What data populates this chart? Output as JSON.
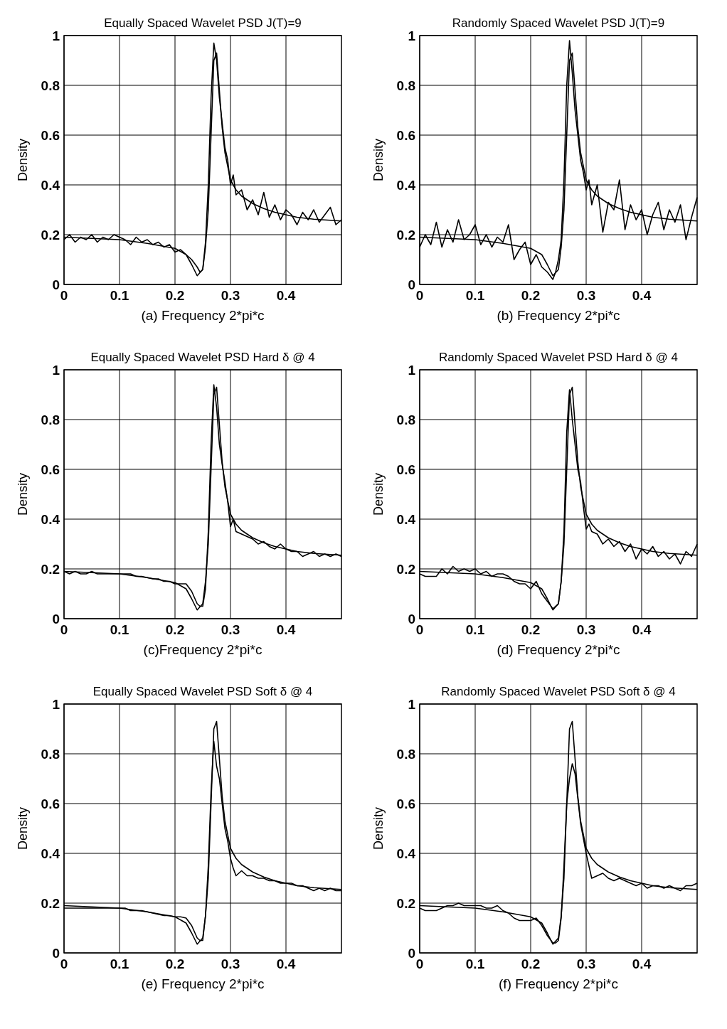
{
  "chart_data": [
    {
      "type": "line",
      "title": "Equally Spaced Wavelet PSD J(T)=9",
      "xlabel": "(a) Frequency 2*pi*c",
      "ylabel": "Density",
      "xlim": [
        0,
        0.5
      ],
      "ylim": [
        0,
        1
      ],
      "xticks": [
        0,
        0.1,
        0.2,
        0.3,
        0.4
      ],
      "yticks": [
        0,
        0.2,
        0.4,
        0.6,
        0.8,
        1
      ],
      "grid": true,
      "series": [
        {
          "color": "#000000",
          "x": [
            0,
            0.05,
            0.1,
            0.15,
            0.2,
            0.22,
            0.23,
            0.24,
            0.25,
            0.255,
            0.26,
            0.265,
            0.27,
            0.275,
            0.28,
            0.285,
            0.29,
            0.3,
            0.31,
            0.32,
            0.34,
            0.36,
            0.38,
            0.4,
            0.42,
            0.45,
            0.5
          ],
          "values": [
            0.19,
            0.185,
            0.18,
            0.165,
            0.145,
            0.12,
            0.08,
            0.035,
            0.06,
            0.15,
            0.3,
            0.6,
            0.9,
            0.93,
            0.78,
            0.63,
            0.53,
            0.42,
            0.38,
            0.355,
            0.325,
            0.305,
            0.29,
            0.28,
            0.27,
            0.262,
            0.255
          ]
        },
        {
          "color": "#000000",
          "x": [
            0,
            0.01,
            0.02,
            0.03,
            0.04,
            0.05,
            0.06,
            0.07,
            0.08,
            0.09,
            0.1,
            0.11,
            0.12,
            0.13,
            0.14,
            0.15,
            0.16,
            0.17,
            0.18,
            0.19,
            0.2,
            0.21,
            0.22,
            0.23,
            0.24,
            0.245,
            0.25,
            0.255,
            0.26,
            0.265,
            0.27,
            0.275,
            0.28,
            0.285,
            0.29,
            0.295,
            0.3,
            0.305,
            0.31,
            0.32,
            0.33,
            0.34,
            0.35,
            0.36,
            0.37,
            0.38,
            0.39,
            0.4,
            0.41,
            0.42,
            0.43,
            0.44,
            0.45,
            0.46,
            0.47,
            0.48,
            0.49,
            0.5
          ],
          "values": [
            0.18,
            0.2,
            0.17,
            0.19,
            0.18,
            0.2,
            0.17,
            0.19,
            0.18,
            0.2,
            0.19,
            0.18,
            0.16,
            0.19,
            0.17,
            0.18,
            0.16,
            0.17,
            0.15,
            0.16,
            0.13,
            0.14,
            0.12,
            0.1,
            0.07,
            0.05,
            0.06,
            0.17,
            0.4,
            0.75,
            0.97,
            0.9,
            0.75,
            0.65,
            0.55,
            0.5,
            0.4,
            0.44,
            0.36,
            0.38,
            0.3,
            0.34,
            0.28,
            0.37,
            0.27,
            0.32,
            0.26,
            0.3,
            0.28,
            0.24,
            0.29,
            0.26,
            0.3,
            0.25,
            0.28,
            0.31,
            0.24,
            0.26
          ]
        }
      ]
    },
    {
      "type": "line",
      "title": "Randomly Spaced Wavelet PSD J(T)=9",
      "xlabel": "(b) Frequency 2*pi*c",
      "ylabel": "Density",
      "xlim": [
        0,
        0.5
      ],
      "ylim": [
        0,
        1
      ],
      "xticks": [
        0,
        0.1,
        0.2,
        0.3,
        0.4
      ],
      "yticks": [
        0,
        0.2,
        0.4,
        0.6,
        0.8,
        1
      ],
      "grid": true,
      "series": [
        {
          "color": "#000000",
          "x": [
            0,
            0.05,
            0.1,
            0.15,
            0.2,
            0.22,
            0.23,
            0.24,
            0.25,
            0.255,
            0.26,
            0.265,
            0.27,
            0.275,
            0.28,
            0.285,
            0.29,
            0.3,
            0.31,
            0.32,
            0.34,
            0.36,
            0.38,
            0.4,
            0.42,
            0.45,
            0.5
          ],
          "values": [
            0.19,
            0.185,
            0.18,
            0.165,
            0.145,
            0.12,
            0.08,
            0.035,
            0.06,
            0.15,
            0.3,
            0.6,
            0.9,
            0.93,
            0.78,
            0.63,
            0.53,
            0.42,
            0.38,
            0.355,
            0.325,
            0.305,
            0.29,
            0.28,
            0.27,
            0.262,
            0.255
          ]
        },
        {
          "color": "#000000",
          "x": [
            0,
            0.01,
            0.02,
            0.03,
            0.04,
            0.05,
            0.06,
            0.07,
            0.08,
            0.09,
            0.1,
            0.11,
            0.12,
            0.13,
            0.14,
            0.15,
            0.16,
            0.17,
            0.18,
            0.19,
            0.2,
            0.21,
            0.22,
            0.23,
            0.24,
            0.245,
            0.25,
            0.255,
            0.26,
            0.265,
            0.27,
            0.275,
            0.28,
            0.285,
            0.29,
            0.295,
            0.3,
            0.305,
            0.31,
            0.32,
            0.33,
            0.34,
            0.35,
            0.36,
            0.37,
            0.38,
            0.39,
            0.4,
            0.41,
            0.42,
            0.43,
            0.44,
            0.45,
            0.46,
            0.47,
            0.48,
            0.49,
            0.5
          ],
          "values": [
            0.15,
            0.2,
            0.16,
            0.25,
            0.15,
            0.22,
            0.17,
            0.26,
            0.18,
            0.2,
            0.24,
            0.16,
            0.2,
            0.15,
            0.19,
            0.17,
            0.24,
            0.1,
            0.14,
            0.17,
            0.08,
            0.12,
            0.07,
            0.05,
            0.02,
            0.05,
            0.1,
            0.18,
            0.42,
            0.8,
            0.98,
            0.85,
            0.7,
            0.6,
            0.5,
            0.45,
            0.38,
            0.42,
            0.32,
            0.4,
            0.21,
            0.33,
            0.3,
            0.42,
            0.22,
            0.32,
            0.26,
            0.3,
            0.2,
            0.28,
            0.33,
            0.22,
            0.3,
            0.25,
            0.32,
            0.18,
            0.27,
            0.35
          ]
        }
      ]
    },
    {
      "type": "line",
      "title": "Equally Spaced Wavelet PSD Hard δ @ 4",
      "xlabel": "(c)Frequency 2*pi*c",
      "ylabel": "Density",
      "xlim": [
        0,
        0.5
      ],
      "ylim": [
        0,
        1
      ],
      "xticks": [
        0,
        0.1,
        0.2,
        0.3,
        0.4
      ],
      "yticks": [
        0,
        0.2,
        0.4,
        0.6,
        0.8,
        1
      ],
      "grid": true,
      "series": [
        {
          "color": "#000000",
          "x": [
            0,
            0.05,
            0.1,
            0.15,
            0.2,
            0.22,
            0.23,
            0.24,
            0.25,
            0.255,
            0.26,
            0.265,
            0.27,
            0.275,
            0.28,
            0.285,
            0.29,
            0.3,
            0.31,
            0.32,
            0.34,
            0.36,
            0.38,
            0.4,
            0.42,
            0.45,
            0.5
          ],
          "values": [
            0.19,
            0.185,
            0.18,
            0.165,
            0.145,
            0.12,
            0.08,
            0.035,
            0.06,
            0.15,
            0.3,
            0.6,
            0.9,
            0.93,
            0.78,
            0.63,
            0.53,
            0.42,
            0.38,
            0.355,
            0.325,
            0.305,
            0.29,
            0.28,
            0.27,
            0.262,
            0.255
          ]
        },
        {
          "color": "#000000",
          "x": [
            0,
            0.01,
            0.02,
            0.03,
            0.04,
            0.05,
            0.06,
            0.07,
            0.08,
            0.09,
            0.1,
            0.11,
            0.12,
            0.13,
            0.14,
            0.15,
            0.16,
            0.17,
            0.18,
            0.19,
            0.2,
            0.21,
            0.22,
            0.23,
            0.24,
            0.245,
            0.25,
            0.255,
            0.26,
            0.265,
            0.27,
            0.275,
            0.28,
            0.285,
            0.29,
            0.295,
            0.3,
            0.305,
            0.31,
            0.32,
            0.33,
            0.34,
            0.35,
            0.36,
            0.37,
            0.38,
            0.39,
            0.4,
            0.41,
            0.42,
            0.43,
            0.44,
            0.45,
            0.46,
            0.47,
            0.48,
            0.49,
            0.5
          ],
          "values": [
            0.19,
            0.18,
            0.19,
            0.18,
            0.18,
            0.19,
            0.18,
            0.18,
            0.18,
            0.18,
            0.18,
            0.18,
            0.18,
            0.17,
            0.17,
            0.165,
            0.16,
            0.16,
            0.15,
            0.15,
            0.14,
            0.14,
            0.14,
            0.11,
            0.06,
            0.05,
            0.05,
            0.12,
            0.35,
            0.7,
            0.94,
            0.85,
            0.7,
            0.62,
            0.55,
            0.47,
            0.37,
            0.4,
            0.35,
            0.34,
            0.33,
            0.32,
            0.3,
            0.31,
            0.29,
            0.28,
            0.3,
            0.28,
            0.27,
            0.27,
            0.25,
            0.26,
            0.27,
            0.25,
            0.26,
            0.25,
            0.26,
            0.25
          ]
        }
      ]
    },
    {
      "type": "line",
      "title": "Randomly Spaced Wavelet PSD Hard δ @ 4",
      "xlabel": "(d) Frequency 2*pi*c",
      "ylabel": "Density",
      "xlim": [
        0,
        0.5
      ],
      "ylim": [
        0,
        1
      ],
      "xticks": [
        0,
        0.1,
        0.2,
        0.3,
        0.4
      ],
      "yticks": [
        0,
        0.2,
        0.4,
        0.6,
        0.8,
        1
      ],
      "grid": true,
      "series": [
        {
          "color": "#000000",
          "x": [
            0,
            0.05,
            0.1,
            0.15,
            0.2,
            0.22,
            0.23,
            0.24,
            0.25,
            0.255,
            0.26,
            0.265,
            0.27,
            0.275,
            0.28,
            0.285,
            0.29,
            0.3,
            0.31,
            0.32,
            0.34,
            0.36,
            0.38,
            0.4,
            0.42,
            0.45,
            0.5
          ],
          "values": [
            0.19,
            0.185,
            0.18,
            0.165,
            0.145,
            0.12,
            0.08,
            0.035,
            0.06,
            0.15,
            0.3,
            0.6,
            0.9,
            0.93,
            0.78,
            0.63,
            0.53,
            0.42,
            0.38,
            0.355,
            0.325,
            0.305,
            0.29,
            0.28,
            0.27,
            0.262,
            0.255
          ]
        },
        {
          "color": "#000000",
          "x": [
            0,
            0.01,
            0.02,
            0.03,
            0.04,
            0.05,
            0.06,
            0.07,
            0.08,
            0.09,
            0.1,
            0.11,
            0.12,
            0.13,
            0.14,
            0.15,
            0.16,
            0.17,
            0.18,
            0.19,
            0.2,
            0.21,
            0.22,
            0.23,
            0.24,
            0.245,
            0.25,
            0.255,
            0.26,
            0.265,
            0.27,
            0.275,
            0.28,
            0.285,
            0.29,
            0.295,
            0.3,
            0.305,
            0.31,
            0.32,
            0.33,
            0.34,
            0.35,
            0.36,
            0.37,
            0.38,
            0.39,
            0.4,
            0.41,
            0.42,
            0.43,
            0.44,
            0.45,
            0.46,
            0.47,
            0.48,
            0.49,
            0.5
          ],
          "values": [
            0.18,
            0.17,
            0.17,
            0.17,
            0.2,
            0.18,
            0.21,
            0.19,
            0.2,
            0.19,
            0.2,
            0.18,
            0.19,
            0.17,
            0.18,
            0.18,
            0.17,
            0.15,
            0.14,
            0.14,
            0.12,
            0.15,
            0.1,
            0.07,
            0.04,
            0.05,
            0.06,
            0.15,
            0.35,
            0.75,
            0.92,
            0.8,
            0.7,
            0.6,
            0.55,
            0.45,
            0.36,
            0.38,
            0.35,
            0.34,
            0.3,
            0.32,
            0.29,
            0.31,
            0.27,
            0.3,
            0.24,
            0.28,
            0.26,
            0.29,
            0.25,
            0.27,
            0.24,
            0.26,
            0.22,
            0.27,
            0.25,
            0.3
          ]
        }
      ]
    },
    {
      "type": "line",
      "title": "Equally Spaced Wavelet PSD Soft δ @ 4",
      "xlabel": "(e) Frequency 2*pi*c",
      "ylabel": "Density",
      "xlim": [
        0,
        0.5
      ],
      "ylim": [
        0,
        1
      ],
      "xticks": [
        0,
        0.1,
        0.2,
        0.3,
        0.4
      ],
      "yticks": [
        0,
        0.2,
        0.4,
        0.6,
        0.8,
        1
      ],
      "grid": true,
      "series": [
        {
          "color": "#000000",
          "x": [
            0,
            0.05,
            0.1,
            0.15,
            0.2,
            0.22,
            0.23,
            0.24,
            0.25,
            0.255,
            0.26,
            0.265,
            0.27,
            0.275,
            0.28,
            0.285,
            0.29,
            0.3,
            0.31,
            0.32,
            0.34,
            0.36,
            0.38,
            0.4,
            0.42,
            0.45,
            0.5
          ],
          "values": [
            0.19,
            0.185,
            0.18,
            0.165,
            0.145,
            0.12,
            0.08,
            0.035,
            0.06,
            0.15,
            0.3,
            0.6,
            0.9,
            0.93,
            0.78,
            0.63,
            0.53,
            0.42,
            0.38,
            0.355,
            0.325,
            0.305,
            0.29,
            0.28,
            0.27,
            0.262,
            0.255
          ]
        },
        {
          "color": "#000000",
          "x": [
            0,
            0.01,
            0.02,
            0.03,
            0.04,
            0.05,
            0.06,
            0.07,
            0.08,
            0.09,
            0.1,
            0.11,
            0.12,
            0.13,
            0.14,
            0.15,
            0.16,
            0.17,
            0.18,
            0.19,
            0.2,
            0.21,
            0.22,
            0.23,
            0.24,
            0.245,
            0.25,
            0.255,
            0.26,
            0.265,
            0.27,
            0.275,
            0.28,
            0.285,
            0.29,
            0.295,
            0.3,
            0.305,
            0.31,
            0.32,
            0.33,
            0.34,
            0.35,
            0.36,
            0.37,
            0.38,
            0.39,
            0.4,
            0.41,
            0.42,
            0.43,
            0.44,
            0.45,
            0.46,
            0.47,
            0.48,
            0.49,
            0.5
          ],
          "values": [
            0.18,
            0.18,
            0.18,
            0.18,
            0.18,
            0.18,
            0.18,
            0.18,
            0.18,
            0.18,
            0.18,
            0.18,
            0.17,
            0.17,
            0.17,
            0.165,
            0.16,
            0.155,
            0.15,
            0.15,
            0.145,
            0.145,
            0.14,
            0.11,
            0.06,
            0.05,
            0.05,
            0.15,
            0.35,
            0.65,
            0.85,
            0.75,
            0.7,
            0.6,
            0.5,
            0.45,
            0.38,
            0.34,
            0.31,
            0.33,
            0.31,
            0.31,
            0.3,
            0.3,
            0.29,
            0.29,
            0.28,
            0.28,
            0.28,
            0.27,
            0.27,
            0.26,
            0.25,
            0.26,
            0.25,
            0.26,
            0.25,
            0.25
          ]
        }
      ]
    },
    {
      "type": "line",
      "title": "Randomly Spaced Wavelet PSD Soft δ @ 4",
      "xlabel": "(f) Frequency 2*pi*c",
      "ylabel": "Density",
      "xlim": [
        0,
        0.5
      ],
      "ylim": [
        0,
        1
      ],
      "xticks": [
        0,
        0.1,
        0.2,
        0.3,
        0.4
      ],
      "yticks": [
        0,
        0.2,
        0.4,
        0.6,
        0.8,
        1
      ],
      "grid": true,
      "series": [
        {
          "color": "#000000",
          "x": [
            0,
            0.05,
            0.1,
            0.15,
            0.2,
            0.22,
            0.23,
            0.24,
            0.25,
            0.255,
            0.26,
            0.265,
            0.27,
            0.275,
            0.28,
            0.285,
            0.29,
            0.3,
            0.31,
            0.32,
            0.34,
            0.36,
            0.38,
            0.4,
            0.42,
            0.45,
            0.5
          ],
          "values": [
            0.19,
            0.185,
            0.18,
            0.165,
            0.145,
            0.12,
            0.08,
            0.035,
            0.06,
            0.15,
            0.3,
            0.6,
            0.9,
            0.93,
            0.78,
            0.63,
            0.53,
            0.42,
            0.38,
            0.355,
            0.325,
            0.305,
            0.29,
            0.28,
            0.27,
            0.262,
            0.255
          ]
        },
        {
          "color": "#000000",
          "x": [
            0,
            0.01,
            0.02,
            0.03,
            0.04,
            0.05,
            0.06,
            0.07,
            0.08,
            0.09,
            0.1,
            0.11,
            0.12,
            0.13,
            0.14,
            0.15,
            0.16,
            0.17,
            0.18,
            0.19,
            0.2,
            0.21,
            0.22,
            0.23,
            0.24,
            0.245,
            0.25,
            0.255,
            0.26,
            0.265,
            0.27,
            0.275,
            0.28,
            0.285,
            0.29,
            0.295,
            0.3,
            0.305,
            0.31,
            0.32,
            0.33,
            0.34,
            0.35,
            0.36,
            0.37,
            0.38,
            0.39,
            0.4,
            0.41,
            0.42,
            0.43,
            0.44,
            0.45,
            0.46,
            0.47,
            0.48,
            0.49,
            0.5
          ],
          "values": [
            0.18,
            0.17,
            0.17,
            0.17,
            0.18,
            0.19,
            0.19,
            0.2,
            0.19,
            0.19,
            0.19,
            0.19,
            0.18,
            0.18,
            0.19,
            0.17,
            0.16,
            0.14,
            0.13,
            0.13,
            0.13,
            0.14,
            0.11,
            0.07,
            0.04,
            0.04,
            0.05,
            0.14,
            0.35,
            0.6,
            0.7,
            0.76,
            0.72,
            0.62,
            0.52,
            0.46,
            0.4,
            0.35,
            0.3,
            0.31,
            0.32,
            0.3,
            0.29,
            0.3,
            0.29,
            0.28,
            0.27,
            0.28,
            0.26,
            0.27,
            0.27,
            0.26,
            0.27,
            0.26,
            0.25,
            0.27,
            0.27,
            0.28
          ]
        }
      ]
    }
  ]
}
